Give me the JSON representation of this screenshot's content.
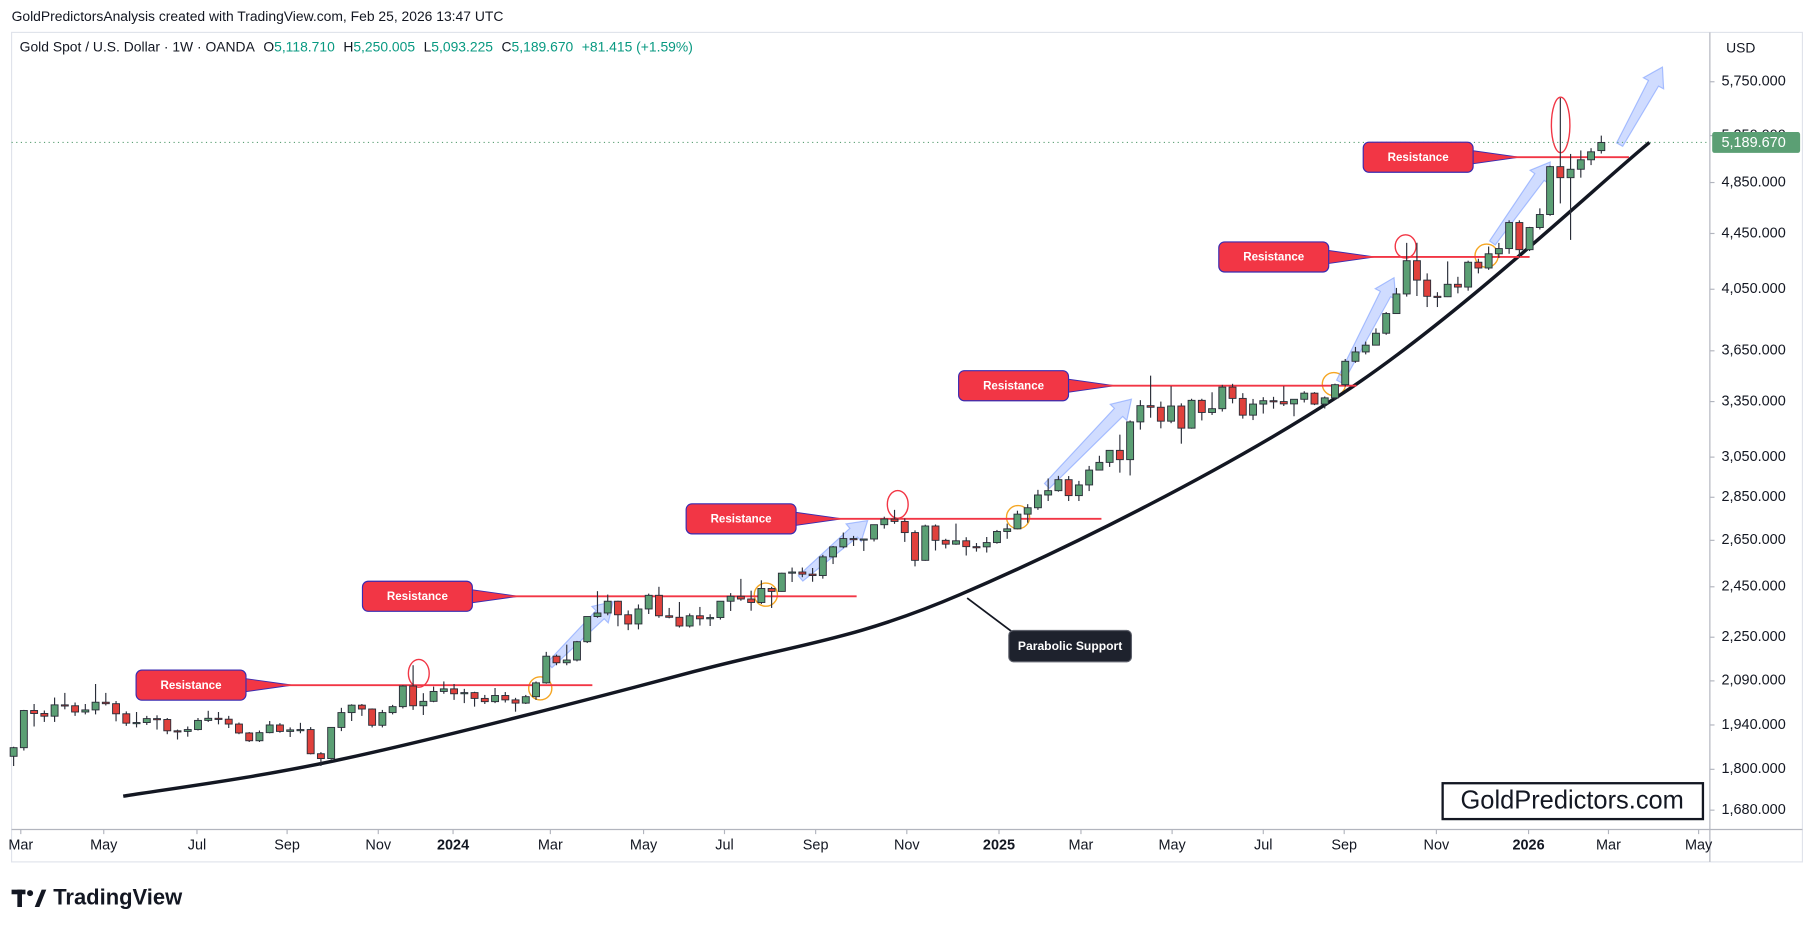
{
  "header": {
    "attribution": "GoldPredictorsAnalysis created with TradingView.com, Feb 25, 2026 13:47 UTC",
    "symbol": "Gold Spot / U.S. Dollar · 1W · OANDA",
    "ohlc": [
      {
        "key": "O",
        "value": "5,118.710"
      },
      {
        "key": "H",
        "value": "5,250.005"
      },
      {
        "key": "L",
        "value": "5,093.225"
      },
      {
        "key": "C",
        "value": "5,189.670"
      }
    ],
    "change": "+81.415 (+1.59%)"
  },
  "chart_data": {
    "type": "candlestick",
    "log_scale": true,
    "currency": "USD",
    "up_color": "#5b9f74",
    "down_color": "#e0413c",
    "candles": [
      [
        1840,
        1870,
        1810,
        1867
      ],
      [
        1867,
        1990,
        1858,
        1988
      ],
      [
        1988,
        2010,
        1935,
        1978
      ],
      [
        1978,
        1988,
        1950,
        1969
      ],
      [
        1969,
        2032,
        1950,
        2007
      ],
      [
        2007,
        2048,
        1992,
        2004
      ],
      [
        2004,
        2015,
        1970,
        1983
      ],
      [
        1983,
        2010,
        1975,
        1990
      ],
      [
        1990,
        2079,
        1975,
        2016
      ],
      [
        2016,
        2048,
        2005,
        2011
      ],
      [
        2011,
        2020,
        1952,
        1977
      ],
      [
        1977,
        1985,
        1937,
        1946
      ],
      [
        1946,
        1983,
        1932,
        1948
      ],
      [
        1948,
        1970,
        1940,
        1961
      ],
      [
        1961,
        1972,
        1925,
        1958
      ],
      [
        1958,
        1963,
        1910,
        1921
      ],
      [
        1921,
        1925,
        1893,
        1919
      ],
      [
        1919,
        1935,
        1902,
        1925
      ],
      [
        1925,
        1963,
        1922,
        1955
      ],
      [
        1955,
        1987,
        1950,
        1962
      ],
      [
        1962,
        1983,
        1942,
        1959
      ],
      [
        1959,
        1970,
        1930,
        1943
      ],
      [
        1943,
        1948,
        1910,
        1914
      ],
      [
        1914,
        1917,
        1885,
        1889
      ],
      [
        1889,
        1922,
        1885,
        1915
      ],
      [
        1915,
        1953,
        1913,
        1940
      ],
      [
        1940,
        1946,
        1915,
        1919
      ],
      [
        1919,
        1932,
        1901,
        1924
      ],
      [
        1924,
        1947,
        1913,
        1925
      ],
      [
        1925,
        1933,
        1846,
        1848
      ],
      [
        1848,
        1853,
        1810,
        1833
      ],
      [
        1833,
        1932,
        1830,
        1932
      ],
      [
        1932,
        1997,
        1920,
        1981
      ],
      [
        1981,
        2009,
        1953,
        2006
      ],
      [
        2006,
        2010,
        1970,
        1993
      ],
      [
        1993,
        1995,
        1932,
        1939
      ],
      [
        1939,
        1990,
        1932,
        1981
      ],
      [
        1981,
        2007,
        1975,
        2001
      ],
      [
        2001,
        2075,
        1995,
        2072
      ],
      [
        2072,
        2146,
        1990,
        2004
      ],
      [
        2004,
        2047,
        1973,
        2019
      ],
      [
        2019,
        2070,
        2016,
        2053
      ],
      [
        2053,
        2088,
        2045,
        2062
      ],
      [
        2062,
        2079,
        2024,
        2045
      ],
      [
        2045,
        2062,
        2013,
        2049
      ],
      [
        2049,
        2052,
        2001,
        2029
      ],
      [
        2029,
        2041,
        2010,
        2018
      ],
      [
        2018,
        2065,
        2013,
        2039
      ],
      [
        2039,
        2051,
        2015,
        2024
      ],
      [
        2024,
        2031,
        1984,
        2013
      ],
      [
        2013,
        2041,
        2010,
        2035
      ],
      [
        2035,
        2088,
        2024,
        2083
      ],
      [
        2083,
        2195,
        2080,
        2179
      ],
      [
        2179,
        2185,
        2146,
        2155
      ],
      [
        2155,
        2222,
        2146,
        2165
      ],
      [
        2165,
        2236,
        2160,
        2233
      ],
      [
        2233,
        2330,
        2228,
        2330
      ],
      [
        2330,
        2432,
        2325,
        2344
      ],
      [
        2344,
        2418,
        2335,
        2391
      ],
      [
        2391,
        2393,
        2292,
        2337
      ],
      [
        2337,
        2354,
        2277,
        2301
      ],
      [
        2301,
        2378,
        2280,
        2360
      ],
      [
        2360,
        2422,
        2340,
        2415
      ],
      [
        2415,
        2450,
        2325,
        2333
      ],
      [
        2333,
        2364,
        2323,
        2327
      ],
      [
        2327,
        2388,
        2287,
        2293
      ],
      [
        2293,
        2342,
        2287,
        2333
      ],
      [
        2333,
        2368,
        2295,
        2321
      ],
      [
        2321,
        2339,
        2293,
        2326
      ],
      [
        2326,
        2392,
        2318,
        2391
      ],
      [
        2391,
        2424,
        2352,
        2411
      ],
      [
        2411,
        2483,
        2393,
        2400
      ],
      [
        2400,
        2434,
        2353,
        2386
      ],
      [
        2386,
        2477,
        2380,
        2443
      ],
      [
        2443,
        2450,
        2364,
        2431
      ],
      [
        2431,
        2509,
        2430,
        2507
      ],
      [
        2507,
        2531,
        2470,
        2512
      ],
      [
        2512,
        2531,
        2490,
        2503
      ],
      [
        2503,
        2529,
        2471,
        2497
      ],
      [
        2497,
        2586,
        2484,
        2577
      ],
      [
        2577,
        2625,
        2546,
        2621
      ],
      [
        2621,
        2685,
        2615,
        2658
      ],
      [
        2658,
        2670,
        2625,
        2653
      ],
      [
        2653,
        2657,
        2603,
        2656
      ],
      [
        2656,
        2722,
        2645,
        2721
      ],
      [
        2721,
        2758,
        2703,
        2747
      ],
      [
        2747,
        2790,
        2725,
        2736
      ],
      [
        2736,
        2750,
        2643,
        2685
      ],
      [
        2685,
        2695,
        2536,
        2562
      ],
      [
        2562,
        2721,
        2560,
        2715
      ],
      [
        2715,
        2722,
        2605,
        2650
      ],
      [
        2650,
        2657,
        2614,
        2633
      ],
      [
        2633,
        2726,
        2630,
        2648
      ],
      [
        2648,
        2664,
        2583,
        2622
      ],
      [
        2622,
        2638,
        2600,
        2621
      ],
      [
        2621,
        2665,
        2596,
        2640
      ],
      [
        2640,
        2697,
        2635,
        2690
      ],
      [
        2690,
        2726,
        2657,
        2702
      ],
      [
        2702,
        2786,
        2700,
        2770
      ],
      [
        2770,
        2817,
        2730,
        2800
      ],
      [
        2800,
        2886,
        2790,
        2861
      ],
      [
        2861,
        2942,
        2832,
        2882
      ],
      [
        2882,
        2955,
        2877,
        2936
      ],
      [
        2936,
        2954,
        2832,
        2858
      ],
      [
        2858,
        2930,
        2832,
        2910
      ],
      [
        2910,
        3005,
        2880,
        2984
      ],
      [
        2984,
        3057,
        2982,
        3023
      ],
      [
        3023,
        3087,
        3000,
        3085
      ],
      [
        3085,
        3168,
        2971,
        3037
      ],
      [
        3037,
        3245,
        2957,
        3237
      ],
      [
        3237,
        3358,
        3195,
        3327
      ],
      [
        3327,
        3500,
        3260,
        3318
      ],
      [
        3318,
        3350,
        3202,
        3241
      ],
      [
        3241,
        3438,
        3230,
        3325
      ],
      [
        3325,
        3340,
        3120,
        3203
      ],
      [
        3203,
        3366,
        3200,
        3357
      ],
      [
        3357,
        3366,
        3245,
        3289
      ],
      [
        3289,
        3403,
        3275,
        3310
      ],
      [
        3310,
        3446,
        3294,
        3433
      ],
      [
        3433,
        3452,
        3340,
        3368
      ],
      [
        3368,
        3398,
        3255,
        3274
      ],
      [
        3274,
        3365,
        3247,
        3336
      ],
      [
        3336,
        3375,
        3283,
        3355
      ],
      [
        3355,
        3377,
        3310,
        3350
      ],
      [
        3350,
        3438,
        3325,
        3337
      ],
      [
        3337,
        3363,
        3268,
        3363
      ],
      [
        3363,
        3409,
        3345,
        3398
      ],
      [
        3398,
        3404,
        3330,
        3336
      ],
      [
        3336,
        3379,
        3311,
        3371
      ],
      [
        3371,
        3453,
        3359,
        3447
      ],
      [
        3447,
        3600,
        3436,
        3586
      ],
      [
        3586,
        3674,
        3577,
        3643
      ],
      [
        3643,
        3707,
        3628,
        3685
      ],
      [
        3685,
        3791,
        3683,
        3760
      ],
      [
        3760,
        3897,
        3750,
        3887
      ],
      [
        3887,
        4059,
        3886,
        4018
      ],
      [
        4018,
        4380,
        4000,
        4250
      ],
      [
        4250,
        4381,
        4004,
        4113
      ],
      [
        4113,
        4160,
        3930,
        4002
      ],
      [
        4002,
        4030,
        3930,
        3999
      ],
      [
        3999,
        4245,
        3997,
        4084
      ],
      [
        4084,
        4136,
        4022,
        4065
      ],
      [
        4065,
        4250,
        4040,
        4239
      ],
      [
        4239,
        4264,
        4160,
        4198
      ],
      [
        4198,
        4353,
        4185,
        4300
      ],
      [
        4300,
        4380,
        4270,
        4338
      ],
      [
        4338,
        4550,
        4300,
        4533
      ],
      [
        4533,
        4550,
        4274,
        4330
      ],
      [
        4330,
        4500,
        4320,
        4495
      ],
      [
        4495,
        4643,
        4480,
        4595
      ],
      [
        4595,
        4990,
        4585,
        4982
      ],
      [
        4982,
        5595,
        4682,
        4890
      ],
      [
        4890,
        5090,
        4402,
        4960
      ],
      [
        4960,
        5120,
        4890,
        5040
      ],
      [
        5040,
        5140,
        4995,
        5108.255
      ],
      [
        5118.71,
        5250.005,
        5093.225,
        5189.67
      ]
    ],
    "xlim": [
      -0.2,
      165.6
    ],
    "xticks": [
      {
        "value": 0.7,
        "label": "Mar"
      },
      {
        "value": 8.8,
        "label": "May"
      },
      {
        "value": 17.9,
        "label": "Jul"
      },
      {
        "value": 26.7,
        "label": "Sep"
      },
      {
        "value": 35.6,
        "label": "Nov"
      },
      {
        "value": 42.9,
        "label": "2024"
      },
      {
        "value": 52.4,
        "label": "Mar"
      },
      {
        "value": 61.5,
        "label": "May"
      },
      {
        "value": 69.4,
        "label": "Jul"
      },
      {
        "value": 78.3,
        "label": "Sep"
      },
      {
        "value": 87.2,
        "label": "Nov"
      },
      {
        "value": 96.2,
        "label": "2025"
      },
      {
        "value": 104.2,
        "label": "Mar"
      },
      {
        "value": 113.1,
        "label": "May"
      },
      {
        "value": 122,
        "label": "Jul"
      },
      {
        "value": 129.9,
        "label": "Sep"
      },
      {
        "value": 138.9,
        "label": "Nov"
      },
      {
        "value": 147.9,
        "label": "2026"
      },
      {
        "value": 155.7,
        "label": "Mar"
      },
      {
        "value": 164.5,
        "label": "May"
      }
    ],
    "ylim": [
      1626,
      6250
    ],
    "yticks": [
      {
        "value": 1680,
        "label": "1,680.000"
      },
      {
        "value": 1800,
        "label": "1,800.000"
      },
      {
        "value": 1940,
        "label": "1,940.000"
      },
      {
        "value": 2090,
        "label": "2,090.000"
      },
      {
        "value": 2250,
        "label": "2,250.000"
      },
      {
        "value": 2450,
        "label": "2,450.000"
      },
      {
        "value": 2650,
        "label": "2,650.000"
      },
      {
        "value": 2850,
        "label": "2,850.000"
      },
      {
        "value": 3050,
        "label": "3,050.000"
      },
      {
        "value": 3350,
        "label": "3,350.000"
      },
      {
        "value": 3650,
        "label": "3,650.000"
      },
      {
        "value": 4050,
        "label": "4,050.000"
      },
      {
        "value": 4450,
        "label": "4,450.000"
      },
      {
        "value": 4850,
        "label": "4,850.000"
      },
      {
        "value": 5250,
        "label": "5,250.000"
      },
      {
        "value": 5750,
        "label": "5,750.000"
      }
    ],
    "last_price": {
      "value": 5189.67,
      "label": "5,189.670"
    },
    "resistance": [
      {
        "label": "Resistance",
        "level": 2075,
        "from": 26.3,
        "to": 56.5
      },
      {
        "label": "Resistance",
        "level": 2411,
        "from": 48.4,
        "to": 82.3
      },
      {
        "label": "Resistance",
        "level": 2748,
        "from": 80.0,
        "to": 106.2
      },
      {
        "label": "Resistance",
        "level": 3441,
        "from": 106.6,
        "to": 131.1
      },
      {
        "label": "Resistance",
        "level": 4277,
        "from": 132.0,
        "to": 148.0
      },
      {
        "label": "Resistance",
        "level": 5062,
        "from": 146.1,
        "to": 157.7
      }
    ],
    "support": {
      "label": "Parabolic Support",
      "points": [
        [
          10.7,
          1720
        ],
        [
          32.5,
          1834
        ],
        [
          66.4,
          2123
        ],
        [
          92.4,
          2418
        ],
        [
          129.7,
          3395
        ],
        [
          159.7,
          5190
        ]
      ]
    }
  },
  "watermark": "GoldPredictors.com",
  "branding": "TradingView"
}
